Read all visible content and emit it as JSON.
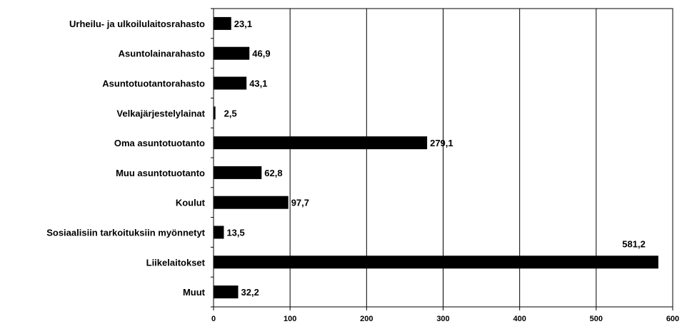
{
  "chart_data": {
    "type": "bar",
    "orientation": "horizontal",
    "categories": [
      "Urheilu- ja ulkoilulaitosrahasto",
      "Asuntolainarahasto",
      "Asuntotuotantorahasto",
      "Velkajärjestelylainat",
      "Oma asuntotuotanto",
      "Muu asuntotuotanto",
      "Koulut",
      "Sosiaalisiin tarkoituksiin myönnetyt",
      "Liikelaitokset",
      "Muut"
    ],
    "values": [
      23.1,
      46.9,
      43.1,
      2.5,
      279.1,
      62.8,
      97.7,
      13.5,
      581.2,
      32.2
    ],
    "value_labels": [
      "23,1",
      "46,9",
      "43,1",
      "2,5",
      "279,1",
      "62,8",
      "97,7",
      "13,5",
      "581,2",
      "32,2"
    ],
    "xlim": [
      0,
      600
    ],
    "x_ticks": [
      0,
      100,
      200,
      300,
      400,
      500,
      600
    ],
    "x_tick_labels": [
      "0",
      "100",
      "200",
      "300",
      "400",
      "500",
      "600"
    ],
    "grid": "vertical",
    "bar_color": "#000000",
    "grid_color": "#000000",
    "title": "",
    "xlabel": "",
    "ylabel": ""
  }
}
